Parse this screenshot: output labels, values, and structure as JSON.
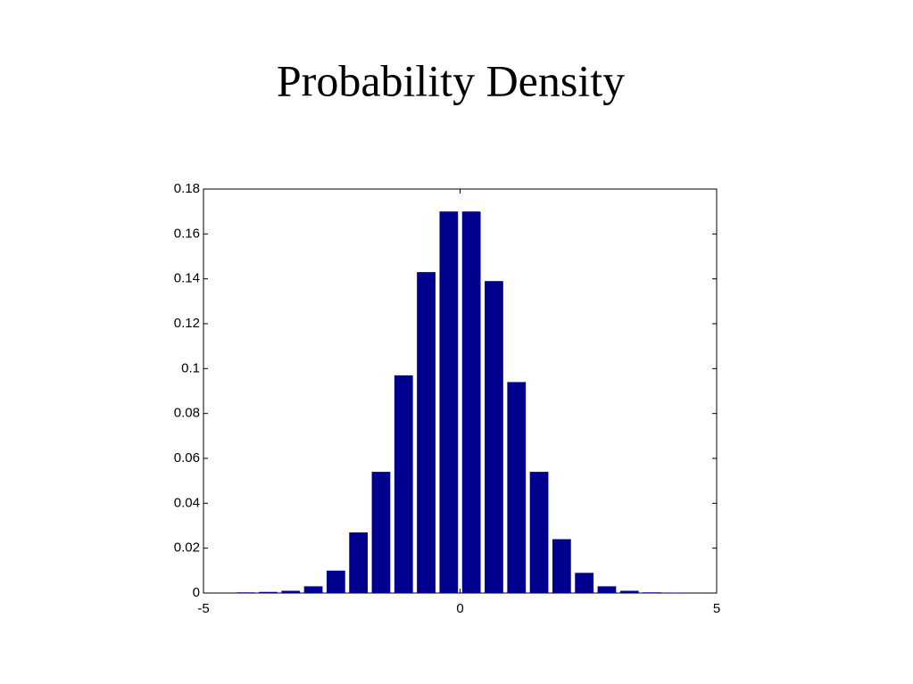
{
  "chart_data": {
    "type": "bar",
    "title": "Probability Density",
    "x": [
      -4.18,
      -3.74,
      -3.3,
      -2.86,
      -2.42,
      -1.98,
      -1.54,
      -1.1,
      -0.66,
      -0.22,
      0.22,
      0.66,
      1.1,
      1.54,
      1.98,
      2.42,
      2.86,
      3.3,
      3.74,
      4.18
    ],
    "values": [
      0.0003,
      0.0005,
      0.001,
      0.003,
      0.01,
      0.027,
      0.054,
      0.097,
      0.143,
      0.17,
      0.17,
      0.139,
      0.094,
      0.054,
      0.024,
      0.009,
      0.003,
      0.001,
      0.0003,
      0.0002
    ],
    "color": "#00008f",
    "xlim": [
      -5,
      5
    ],
    "xticks": [
      -5,
      0,
      5
    ],
    "ylim": [
      0,
      0.18
    ],
    "yticks": [
      0,
      0.02,
      0.04,
      0.06,
      0.08,
      0.1,
      0.12,
      0.14,
      0.16,
      0.18
    ],
    "grid": false
  }
}
